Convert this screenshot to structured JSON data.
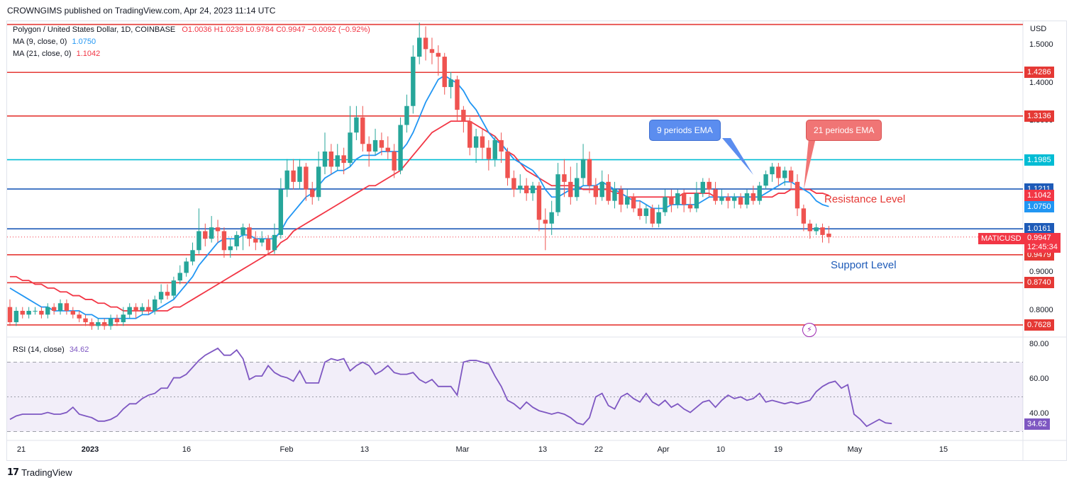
{
  "published_by": "CROWNGIMS published on TradingView.com, Apr 24, 2023 11:14 UTC",
  "legend": {
    "symbol_line": "Polygon / United States Dollar, 1D, COINBASE",
    "ohlc": "O1.0036  H1.0239  L0.9784  C0.9947  −0.0092 (−0.92%)",
    "ma9_label": "MA (9, close, 0)",
    "ma9_value": "1.0750",
    "ma21_label": "MA (21, close, 0)",
    "ma21_value": "1.1042",
    "rsi_label": "RSI (14, close)",
    "rsi_value": "34.62"
  },
  "currency": "USD",
  "ticker_tag": "MATICUSD",
  "last_price": "0.9947",
  "countdown": "12:45:34",
  "callouts": {
    "ema9": "9 periods EMA",
    "ema21": "21 periods EMA"
  },
  "annotations": {
    "resistance": "Resistance Level",
    "support": "Support Level"
  },
  "brand": "TradingView",
  "colors": {
    "up": "#26a69a",
    "down": "#ef5350",
    "ma9": "#2196f3",
    "ma21": "#f23645",
    "rsi": "#7e57c2",
    "red_level": "#e53935",
    "blue_level": "#1e5bb8",
    "cyan_level": "#00bcd4"
  },
  "chart_data": [
    {
      "type": "candlestick",
      "title": "Polygon / United States Dollar, 1D, COINBASE",
      "ylim": [
        0.73,
        1.56
      ],
      "price_axis_ticks": [
        "1.5000",
        "1.4000",
        "1.3000",
        "0.9000",
        "0.8000"
      ],
      "x_ticks": [
        "21",
        "2023",
        "16",
        "Feb",
        "13",
        "Mar",
        "13",
        "22",
        "Apr",
        "10",
        "19",
        "May",
        "15"
      ],
      "horizontal_levels": [
        {
          "value": 1.555,
          "color": "red",
          "label": ""
        },
        {
          "value": 1.4286,
          "color": "red",
          "label": "1.4286"
        },
        {
          "value": 1.3136,
          "color": "red",
          "label": "1.3136"
        },
        {
          "value": 1.1985,
          "color": "cyan",
          "label": "1.1985"
        },
        {
          "value": 1.1211,
          "color": "blue",
          "label": "1.1211"
        },
        {
          "value": 1.0161,
          "color": "blue",
          "label": "1.0161"
        },
        {
          "value": 0.9479,
          "color": "red",
          "label": "0.9479"
        },
        {
          "value": 0.874,
          "color": "red",
          "label": "0.8740"
        },
        {
          "value": 0.7628,
          "color": "red",
          "label": "0.7628"
        }
      ],
      "indicator_tags": [
        {
          "value": 1.1042,
          "label": "1.1042",
          "color": "red"
        },
        {
          "value": 1.075,
          "label": "1.0750",
          "color": "blue"
        }
      ],
      "candles": [
        [
          0.81,
          0.77,
          0.83,
          0.76
        ],
        [
          0.77,
          0.8,
          0.81,
          0.76
        ],
        [
          0.8,
          0.79,
          0.81,
          0.78
        ],
        [
          0.79,
          0.8,
          0.81,
          0.78
        ],
        [
          0.8,
          0.8,
          0.81,
          0.79
        ],
        [
          0.8,
          0.79,
          0.81,
          0.78
        ],
        [
          0.79,
          0.81,
          0.82,
          0.78
        ],
        [
          0.81,
          0.8,
          0.82,
          0.79
        ],
        [
          0.8,
          0.82,
          0.83,
          0.79
        ],
        [
          0.82,
          0.8,
          0.83,
          0.79
        ],
        [
          0.8,
          0.79,
          0.81,
          0.78
        ],
        [
          0.79,
          0.78,
          0.8,
          0.77
        ],
        [
          0.78,
          0.77,
          0.79,
          0.76
        ],
        [
          0.77,
          0.76,
          0.78,
          0.75
        ],
        [
          0.76,
          0.77,
          0.78,
          0.75
        ],
        [
          0.77,
          0.76,
          0.78,
          0.75
        ],
        [
          0.76,
          0.78,
          0.79,
          0.75
        ],
        [
          0.78,
          0.77,
          0.79,
          0.76
        ],
        [
          0.77,
          0.79,
          0.81,
          0.76
        ],
        [
          0.79,
          0.81,
          0.82,
          0.78
        ],
        [
          0.81,
          0.8,
          0.82,
          0.78
        ],
        [
          0.8,
          0.81,
          0.82,
          0.79
        ],
        [
          0.81,
          0.8,
          0.83,
          0.79
        ],
        [
          0.8,
          0.83,
          0.84,
          0.79
        ],
        [
          0.83,
          0.85,
          0.87,
          0.82
        ],
        [
          0.85,
          0.84,
          0.87,
          0.83
        ],
        [
          0.84,
          0.88,
          0.89,
          0.83
        ],
        [
          0.88,
          0.9,
          0.92,
          0.87
        ],
        [
          0.9,
          0.93,
          0.94,
          0.89
        ],
        [
          0.93,
          0.96,
          0.98,
          0.92
        ],
        [
          0.96,
          1.01,
          1.07,
          0.95
        ],
        [
          1.01,
          0.99,
          1.03,
          0.97
        ],
        [
          0.99,
          1.02,
          1.05,
          0.98
        ],
        [
          1.02,
          1.01,
          1.04,
          0.98
        ],
        [
          1.01,
          0.96,
          1.02,
          0.94
        ],
        [
          0.96,
          0.97,
          0.99,
          0.94
        ],
        [
          0.97,
          1.0,
          1.01,
          0.96
        ],
        [
          1.0,
          1.02,
          1.03,
          0.96
        ],
        [
          1.02,
          0.99,
          1.03,
          0.97
        ],
        [
          0.99,
          0.98,
          1.01,
          0.96
        ],
        [
          0.98,
          0.99,
          1.01,
          0.97
        ],
        [
          0.99,
          0.96,
          1.0,
          0.95
        ],
        [
          0.96,
          1.0,
          1.03,
          0.95
        ],
        [
          1.0,
          1.12,
          1.15,
          0.99
        ],
        [
          1.12,
          1.17,
          1.2,
          1.1
        ],
        [
          1.17,
          1.14,
          1.2,
          1.12
        ],
        [
          1.14,
          1.18,
          1.2,
          1.12
        ],
        [
          1.18,
          1.12,
          1.19,
          1.09
        ],
        [
          1.12,
          1.1,
          1.14,
          1.08
        ],
        [
          1.1,
          1.18,
          1.22,
          1.09
        ],
        [
          1.18,
          1.22,
          1.27,
          1.16
        ],
        [
          1.22,
          1.18,
          1.24,
          1.16
        ],
        [
          1.18,
          1.21,
          1.24,
          1.17
        ],
        [
          1.21,
          1.19,
          1.23,
          1.16
        ],
        [
          1.19,
          1.27,
          1.34,
          1.18
        ],
        [
          1.27,
          1.31,
          1.34,
          1.25
        ],
        [
          1.31,
          1.24,
          1.34,
          1.22
        ],
        [
          1.24,
          1.22,
          1.26,
          1.18
        ],
        [
          1.22,
          1.25,
          1.28,
          1.21
        ],
        [
          1.25,
          1.23,
          1.27,
          1.21
        ],
        [
          1.23,
          1.22,
          1.26,
          1.2
        ],
        [
          1.22,
          1.17,
          1.24,
          1.15
        ],
        [
          1.17,
          1.29,
          1.31,
          1.16
        ],
        [
          1.29,
          1.34,
          1.37,
          1.27
        ],
        [
          1.34,
          1.47,
          1.5,
          1.32
        ],
        [
          1.47,
          1.52,
          1.56,
          1.45
        ],
        [
          1.52,
          1.49,
          1.55,
          1.46
        ],
        [
          1.49,
          1.48,
          1.52,
          1.45
        ],
        [
          1.48,
          1.47,
          1.5,
          1.42
        ],
        [
          1.47,
          1.39,
          1.48,
          1.37
        ],
        [
          1.39,
          1.41,
          1.43,
          1.36
        ],
        [
          1.41,
          1.33,
          1.42,
          1.3
        ],
        [
          1.33,
          1.3,
          1.34,
          1.27
        ],
        [
          1.3,
          1.23,
          1.31,
          1.21
        ],
        [
          1.23,
          1.26,
          1.28,
          1.19
        ],
        [
          1.26,
          1.23,
          1.28,
          1.2
        ],
        [
          1.23,
          1.2,
          1.25,
          1.17
        ],
        [
          1.2,
          1.25,
          1.26,
          1.18
        ],
        [
          1.25,
          1.22,
          1.27,
          1.19
        ],
        [
          1.22,
          1.15,
          1.23,
          1.13
        ],
        [
          1.15,
          1.12,
          1.17,
          1.1
        ],
        [
          1.12,
          1.13,
          1.16,
          1.11
        ],
        [
          1.13,
          1.11,
          1.15,
          1.09
        ],
        [
          1.11,
          1.13,
          1.14,
          1.09
        ],
        [
          1.13,
          1.04,
          1.14,
          1.01
        ],
        [
          1.04,
          1.03,
          1.07,
          0.96
        ],
        [
          1.03,
          1.06,
          1.09,
          1.0
        ],
        [
          1.06,
          1.16,
          1.19,
          1.05
        ],
        [
          1.16,
          1.14,
          1.2,
          1.1
        ],
        [
          1.14,
          1.1,
          1.18,
          1.08
        ],
        [
          1.1,
          1.15,
          1.19,
          1.09
        ],
        [
          1.15,
          1.2,
          1.24,
          1.13
        ],
        [
          1.2,
          1.13,
          1.22,
          1.11
        ],
        [
          1.13,
          1.1,
          1.15,
          1.08
        ],
        [
          1.1,
          1.14,
          1.17,
          1.09
        ],
        [
          1.14,
          1.09,
          1.16,
          1.08
        ],
        [
          1.09,
          1.12,
          1.14,
          1.07
        ],
        [
          1.12,
          1.08,
          1.13,
          1.06
        ],
        [
          1.08,
          1.1,
          1.12,
          1.07
        ],
        [
          1.1,
          1.07,
          1.11,
          1.06
        ],
        [
          1.07,
          1.05,
          1.09,
          1.04
        ],
        [
          1.05,
          1.07,
          1.08,
          1.03
        ],
        [
          1.07,
          1.03,
          1.08,
          1.02
        ],
        [
          1.03,
          1.06,
          1.08,
          1.02
        ],
        [
          1.06,
          1.1,
          1.12,
          1.05
        ],
        [
          1.1,
          1.08,
          1.12,
          1.06
        ],
        [
          1.08,
          1.11,
          1.12,
          1.07
        ],
        [
          1.11,
          1.08,
          1.12,
          1.06
        ],
        [
          1.08,
          1.07,
          1.1,
          1.06
        ],
        [
          1.07,
          1.11,
          1.14,
          1.06
        ],
        [
          1.11,
          1.14,
          1.15,
          1.1
        ],
        [
          1.14,
          1.12,
          1.15,
          1.1
        ],
        [
          1.12,
          1.09,
          1.14,
          1.08
        ],
        [
          1.09,
          1.1,
          1.12,
          1.08
        ],
        [
          1.1,
          1.09,
          1.11,
          1.07
        ],
        [
          1.09,
          1.1,
          1.11,
          1.07
        ],
        [
          1.1,
          1.08,
          1.11,
          1.07
        ],
        [
          1.08,
          1.11,
          1.12,
          1.07
        ],
        [
          1.11,
          1.09,
          1.13,
          1.08
        ],
        [
          1.09,
          1.13,
          1.14,
          1.08
        ],
        [
          1.13,
          1.16,
          1.17,
          1.12
        ],
        [
          1.16,
          1.18,
          1.19,
          1.14
        ],
        [
          1.18,
          1.15,
          1.19,
          1.13
        ],
        [
          1.15,
          1.17,
          1.18,
          1.13
        ],
        [
          1.17,
          1.14,
          1.18,
          1.12
        ],
        [
          1.14,
          1.07,
          1.16,
          1.05
        ],
        [
          1.07,
          1.03,
          1.08,
          1.01
        ],
        [
          1.03,
          1.01,
          1.04,
          0.99
        ],
        [
          1.01,
          1.02,
          1.03,
          1.0
        ],
        [
          1.02,
          1.0,
          1.03,
          0.98
        ],
        [
          1.0036,
          0.9947,
          1.0239,
          0.9784
        ]
      ],
      "ma9": [
        0.86,
        0.85,
        0.84,
        0.83,
        0.82,
        0.81,
        0.81,
        0.8,
        0.8,
        0.8,
        0.8,
        0.8,
        0.79,
        0.79,
        0.78,
        0.78,
        0.78,
        0.78,
        0.78,
        0.78,
        0.78,
        0.79,
        0.79,
        0.8,
        0.81,
        0.82,
        0.83,
        0.85,
        0.87,
        0.89,
        0.92,
        0.94,
        0.96,
        0.98,
        0.99,
        0.99,
        0.99,
        1.0,
        1.0,
        0.99,
        0.99,
        0.99,
        0.99,
        1.01,
        1.04,
        1.06,
        1.08,
        1.1,
        1.11,
        1.13,
        1.15,
        1.16,
        1.17,
        1.17,
        1.18,
        1.2,
        1.21,
        1.21,
        1.21,
        1.22,
        1.22,
        1.22,
        1.22,
        1.24,
        1.27,
        1.31,
        1.35,
        1.38,
        1.41,
        1.42,
        1.41,
        1.4,
        1.38,
        1.35,
        1.33,
        1.3,
        1.27,
        1.25,
        1.24,
        1.22,
        1.2,
        1.19,
        1.18,
        1.17,
        1.15,
        1.12,
        1.1,
        1.1,
        1.11,
        1.12,
        1.12,
        1.13,
        1.13,
        1.13,
        1.14,
        1.13,
        1.12,
        1.11,
        1.1,
        1.09,
        1.09,
        1.08,
        1.07,
        1.07,
        1.07,
        1.08,
        1.08,
        1.08,
        1.08,
        1.08,
        1.09,
        1.1,
        1.1,
        1.1,
        1.1,
        1.1,
        1.1,
        1.1,
        1.1,
        1.1,
        1.11,
        1.12,
        1.13,
        1.14,
        1.14,
        1.13,
        1.12,
        1.11,
        1.09,
        1.08,
        1.075
      ],
      "ma21": [
        0.89,
        0.89,
        0.88,
        0.88,
        0.87,
        0.87,
        0.86,
        0.86,
        0.85,
        0.85,
        0.84,
        0.84,
        0.83,
        0.83,
        0.82,
        0.82,
        0.81,
        0.81,
        0.8,
        0.8,
        0.8,
        0.8,
        0.8,
        0.8,
        0.8,
        0.8,
        0.81,
        0.81,
        0.82,
        0.83,
        0.84,
        0.85,
        0.86,
        0.87,
        0.88,
        0.89,
        0.9,
        0.91,
        0.92,
        0.93,
        0.94,
        0.95,
        0.96,
        0.98,
        0.99,
        1.01,
        1.02,
        1.03,
        1.04,
        1.05,
        1.06,
        1.07,
        1.08,
        1.09,
        1.1,
        1.11,
        1.12,
        1.13,
        1.13,
        1.14,
        1.15,
        1.16,
        1.17,
        1.19,
        1.21,
        1.23,
        1.25,
        1.27,
        1.28,
        1.29,
        1.3,
        1.3,
        1.3,
        1.3,
        1.29,
        1.28,
        1.27,
        1.26,
        1.24,
        1.22,
        1.21,
        1.19,
        1.17,
        1.16,
        1.15,
        1.14,
        1.13,
        1.13,
        1.13,
        1.13,
        1.13,
        1.12,
        1.12,
        1.12,
        1.12,
        1.12,
        1.11,
        1.11,
        1.1,
        1.1,
        1.1,
        1.1,
        1.1,
        1.1,
        1.1,
        1.1,
        1.1,
        1.11,
        1.11,
        1.11,
        1.11,
        1.11,
        1.1,
        1.1,
        1.1,
        1.1,
        1.1,
        1.1,
        1.1,
        1.1,
        1.1,
        1.1,
        1.11,
        1.11,
        1.12,
        1.12,
        1.12,
        1.12,
        1.11,
        1.11,
        1.1042
      ]
    },
    {
      "type": "line",
      "title": "RSI (14, close)",
      "ylim": [
        28,
        82
      ],
      "y_ticks": [
        "80.00",
        "60.00",
        "40.00"
      ],
      "bands": [
        70,
        50,
        30
      ],
      "values": [
        37,
        39,
        40,
        40,
        40,
        40,
        41,
        40,
        40,
        41,
        44,
        40,
        39,
        38,
        36,
        36,
        37,
        39,
        43,
        46,
        46,
        49,
        51,
        52,
        55,
        55,
        61,
        61,
        63,
        67,
        71,
        74,
        76,
        78,
        74,
        74,
        77,
        72,
        60,
        62,
        62,
        68,
        64,
        62,
        61,
        59,
        65,
        58,
        58,
        58,
        70,
        72,
        71,
        72,
        65,
        68,
        70,
        68,
        63,
        65,
        68,
        64,
        63,
        63,
        64,
        60,
        58,
        60,
        56,
        56,
        56,
        51,
        70,
        71,
        71,
        70,
        69,
        62,
        56,
        48,
        46,
        43,
        47,
        44,
        42,
        41,
        40,
        41,
        40,
        38,
        35,
        34,
        38,
        50,
        52,
        45,
        43,
        50,
        52,
        49,
        47,
        52,
        47,
        45,
        48,
        44,
        46,
        43,
        41,
        44,
        47,
        48,
        44,
        48,
        51,
        49,
        50,
        48,
        49,
        52,
        47,
        48,
        47,
        46,
        47,
        46,
        47,
        48,
        53,
        56,
        58,
        59,
        55,
        57,
        40,
        37,
        33,
        35,
        37,
        35,
        34.62
      ]
    }
  ]
}
